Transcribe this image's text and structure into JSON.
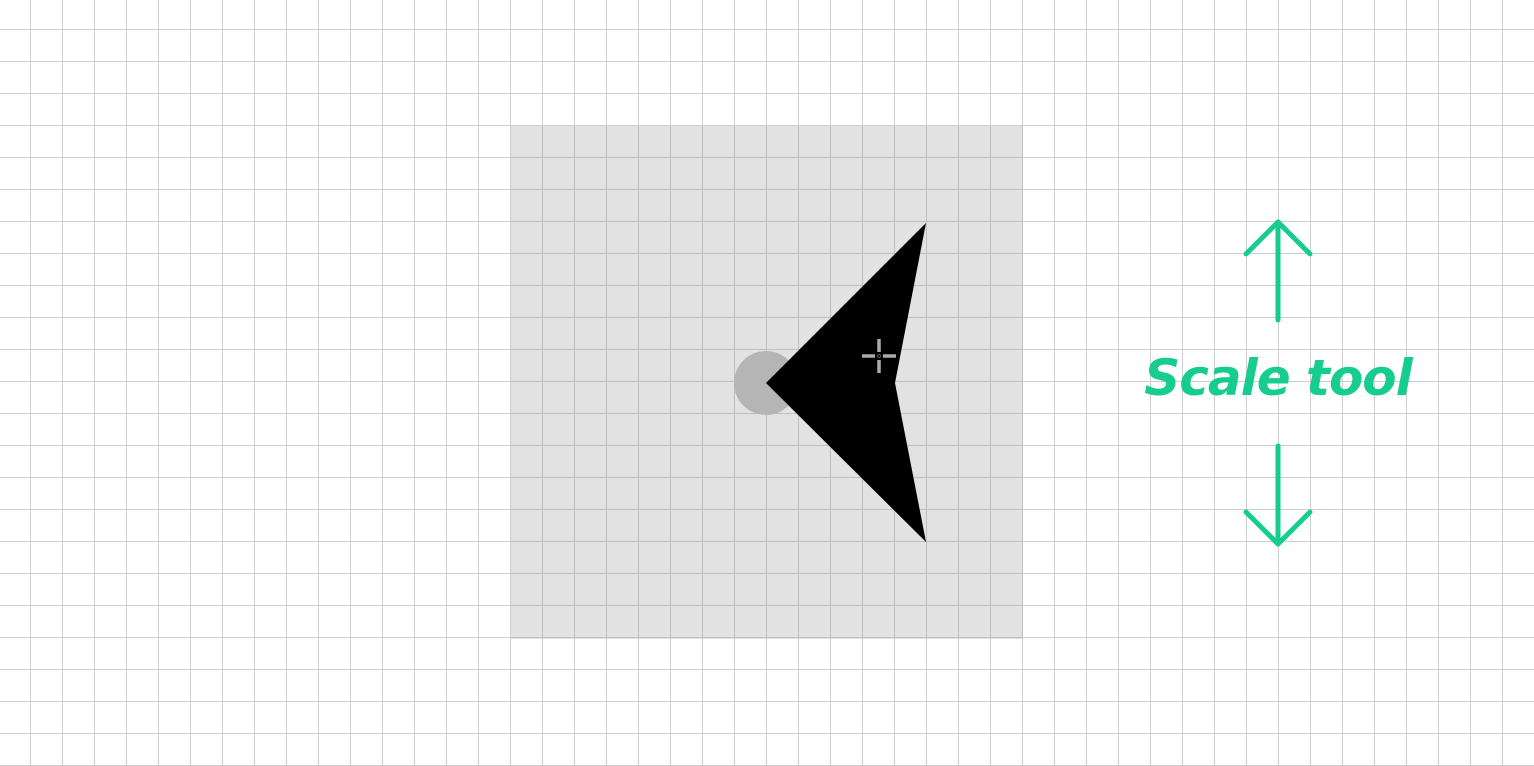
{
  "annotation": {
    "label": "Scale tool",
    "color": "#16cc8f"
  },
  "canvas": {
    "background": "#ffffff",
    "grid_color": "#cfcfcf",
    "grid": true
  },
  "selection": {
    "fill": "rgba(150,150,150,0.28)"
  },
  "shape": {
    "type": "chevron-arrow",
    "fill": "#000000"
  },
  "pivot": {
    "fill": "#b5b5b5"
  },
  "icons": {
    "cursor": "move-crosshair-icon",
    "scale_up": "arrow-up-icon",
    "scale_down": "arrow-down-icon"
  }
}
